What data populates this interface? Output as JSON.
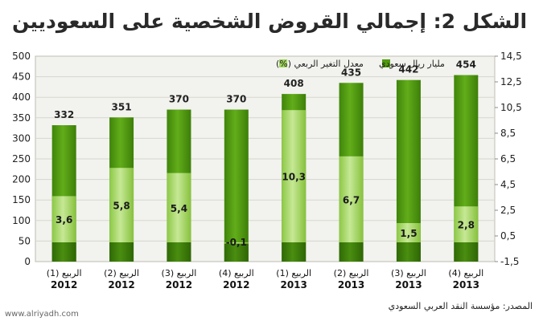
{
  "title": "الشكل 2: إجمالي القروض الشخصية على السعوديين",
  "source": "المصدر: مؤسسة النقد العربي السعودي",
  "watermark": "www.alriyadh.com",
  "colors": {
    "bar_dark": "#4f9a0e",
    "bar_light": "#9fd65a",
    "bar_base": "#3d7e0a",
    "panel_bg": "#f2f2ee",
    "grid": "#d7d7cf"
  },
  "chart_data": {
    "type": "bar",
    "categories": [
      [
        "الربيع (1)",
        "2012"
      ],
      [
        "الربيع (2)",
        "2012"
      ],
      [
        "الربيع (3)",
        "2012"
      ],
      [
        "الربيع (4)",
        "2012"
      ],
      [
        "الربيع (1)",
        "2013"
      ],
      [
        "الربيع (2)",
        "2013"
      ],
      [
        "الربيع (3)",
        "2013"
      ],
      [
        "الربيع (4)",
        "2013"
      ]
    ],
    "series": [
      {
        "name": "مليار ريال سعودي",
        "axis": "left",
        "color": "#4f9a0e",
        "values": [
          332,
          351,
          370,
          370,
          408,
          435,
          442,
          454
        ]
      },
      {
        "name": "معدل التغير الربعي (%)",
        "axis": "right",
        "color": "#9fd65a",
        "values": [
          3.6,
          5.8,
          5.4,
          -0.1,
          10.3,
          6.7,
          1.5,
          2.8
        ]
      }
    ],
    "value_labels": [
      "332",
      "351",
      "370",
      "370",
      "408",
      "435",
      "442",
      "454"
    ],
    "pct_labels": [
      "3,6",
      "5,8",
      "5,4",
      "-0,1",
      "10,3",
      "6,7",
      "1,5",
      "2,8"
    ],
    "y_left": {
      "min": 0,
      "max": 500,
      "ticks": [
        "0",
        "50",
        "100",
        "150",
        "200",
        "250",
        "300",
        "350",
        "400",
        "450",
        "500"
      ]
    },
    "y_right": {
      "min": -1.5,
      "max": 14.5,
      "ticks": [
        "-1,5",
        "0,5",
        "2,5",
        "4,5",
        "6,5",
        "8,5",
        "10,5",
        "12,5",
        "14,5"
      ]
    },
    "grid": true,
    "legend_position": "top-right"
  }
}
